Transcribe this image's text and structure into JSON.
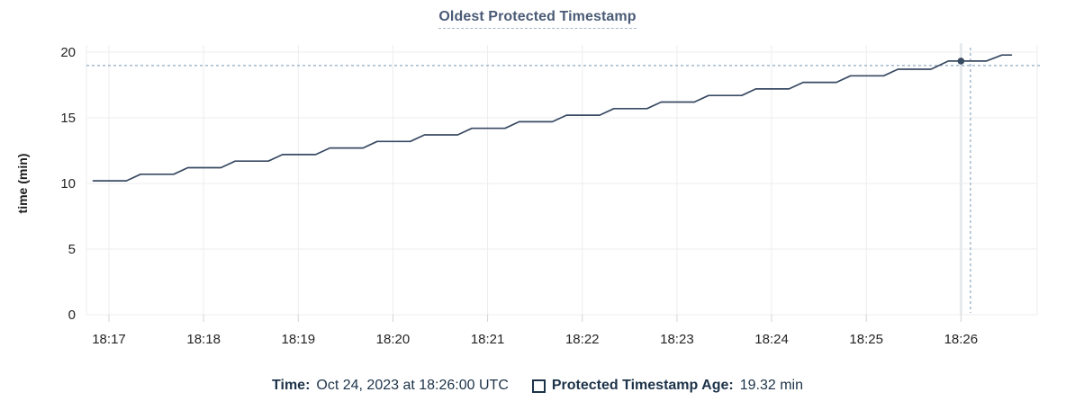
{
  "title": "Oldest Protected Timestamp",
  "tooltip": {
    "time_label": "Time:",
    "time_value": "Oct 24, 2023 at 18:26:00 UTC",
    "series_label": "Protected Timestamp Age:",
    "series_value": "19.32 min"
  },
  "colors": {
    "line": "#394a63",
    "title": "#4a5b76",
    "title_underline": "#a4b4c6",
    "navy": "#1d3349",
    "grid": "#ededed",
    "axis_text": "#242424",
    "crosshair": "#8fa9c0",
    "guideline": "#e7eaed",
    "tick": "#d4d4d4"
  },
  "chart_data": {
    "type": "line",
    "title": "Oldest Protected Timestamp",
    "xlabel": "",
    "ylabel": "time (min)",
    "ylim": [
      0,
      20
    ],
    "yticks": [
      0,
      5,
      10,
      15,
      20
    ],
    "xticks": [
      "18:17",
      "18:18",
      "18:19",
      "18:20",
      "18:21",
      "18:22",
      "18:23",
      "18:24",
      "18:25",
      "18:26"
    ],
    "x_unit": "seconds since 18:17:00",
    "grid": true,
    "legend_position": "bottom",
    "series": [
      {
        "name": "Protected Timestamp Age",
        "points": [
          [
            -10,
            10.2
          ],
          [
            11,
            10.2
          ],
          [
            20,
            10.7
          ],
          [
            41,
            10.7
          ],
          [
            50,
            11.2
          ],
          [
            71,
            11.2
          ],
          [
            80,
            11.7
          ],
          [
            101,
            11.7
          ],
          [
            110,
            12.2
          ],
          [
            131,
            12.2
          ],
          [
            140,
            12.7
          ],
          [
            161,
            12.7
          ],
          [
            170,
            13.2
          ],
          [
            191,
            13.2
          ],
          [
            200,
            13.7
          ],
          [
            221,
            13.7
          ],
          [
            230,
            14.2
          ],
          [
            251,
            14.2
          ],
          [
            260,
            14.7
          ],
          [
            281,
            14.7
          ],
          [
            290,
            15.2
          ],
          [
            311,
            15.2
          ],
          [
            320,
            15.7
          ],
          [
            341,
            15.7
          ],
          [
            350,
            16.2
          ],
          [
            371,
            16.2
          ],
          [
            380,
            16.7
          ],
          [
            401,
            16.7
          ],
          [
            410,
            17.2
          ],
          [
            431,
            17.2
          ],
          [
            440,
            17.7
          ],
          [
            461,
            17.7
          ],
          [
            470,
            18.2
          ],
          [
            491,
            18.2
          ],
          [
            500,
            18.7
          ],
          [
            521,
            18.7
          ],
          [
            532,
            19.32
          ],
          [
            556,
            19.32
          ],
          [
            566,
            19.78
          ],
          [
            572,
            19.78
          ]
        ]
      }
    ],
    "hover_point": {
      "t": 540,
      "value": 19.32,
      "time": "18:26:00",
      "date": "Oct 24, 2023",
      "label": "19.32 min"
    },
    "crosshair": {
      "t": 546,
      "value": 18.98
    }
  }
}
